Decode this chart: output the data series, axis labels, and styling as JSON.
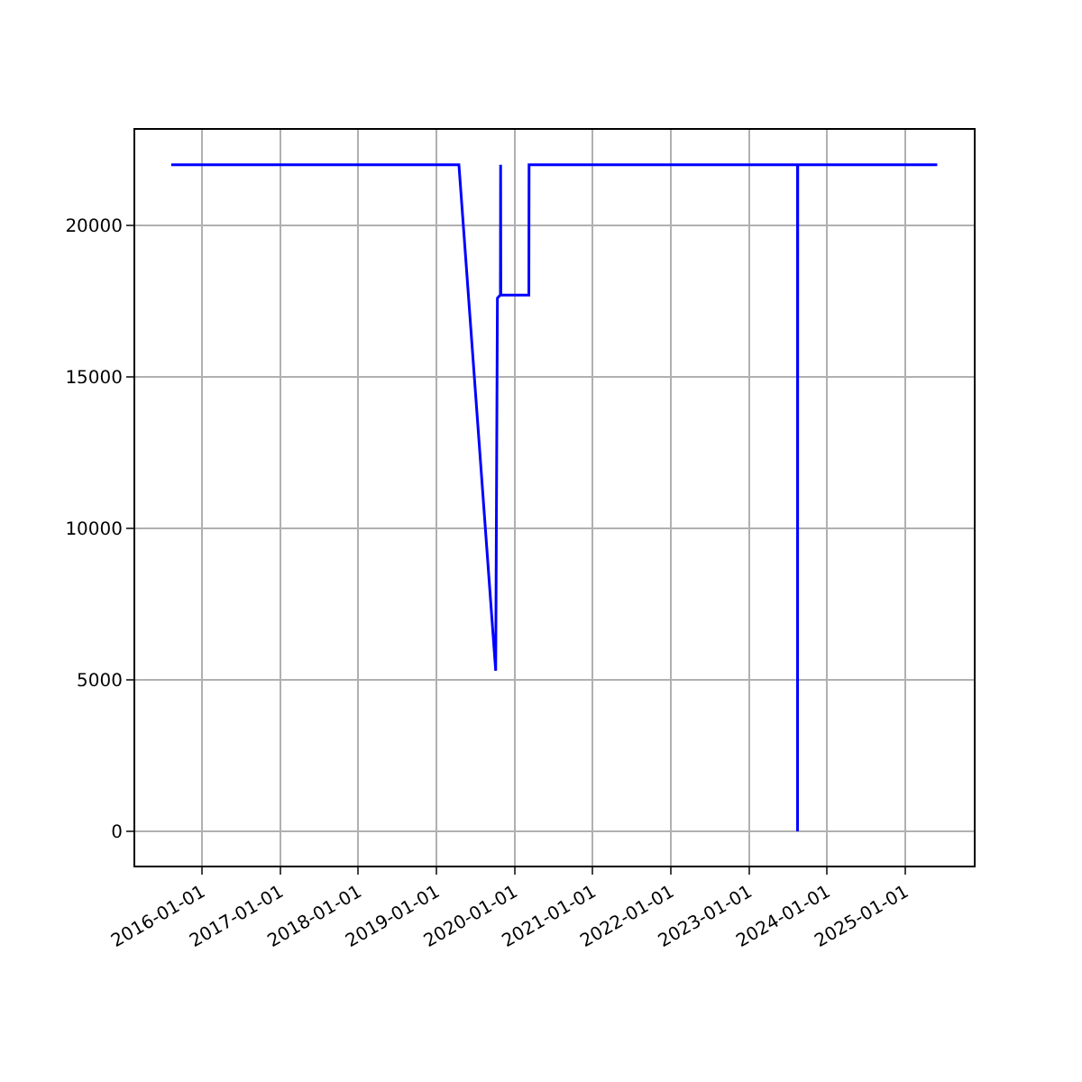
{
  "chart_data": {
    "type": "line",
    "x": [
      "2015-08-10",
      "2019-04-16",
      "2019-10-05",
      "2019-10-13",
      "2019-10-27",
      "2019-10-28",
      "2019-10-29",
      "2020-03-08",
      "2020-03-09",
      "2023-08-16",
      "2023-08-16",
      "2023-08-17",
      "2025-05-30"
    ],
    "series": [
      {
        "color": "#0000ff",
        "values": [
          22000,
          22000,
          5300,
          17600,
          17700,
          22000,
          17700,
          17700,
          22000,
          22000,
          0,
          22000,
          22000
        ]
      }
    ],
    "xlim": [
      "2015-02-23",
      "2025-11-17"
    ],
    "xticks": [
      "2016-01-01",
      "2017-01-01",
      "2018-01-01",
      "2019-01-01",
      "2020-01-01",
      "2021-01-01",
      "2022-01-01",
      "2023-01-01",
      "2024-01-01",
      "2025-01-01"
    ],
    "ylim": [
      -1130,
      23150
    ],
    "yticks": [
      0,
      5000,
      10000,
      15000,
      20000
    ],
    "grid": true,
    "marker": "none",
    "line_style": "solid"
  }
}
